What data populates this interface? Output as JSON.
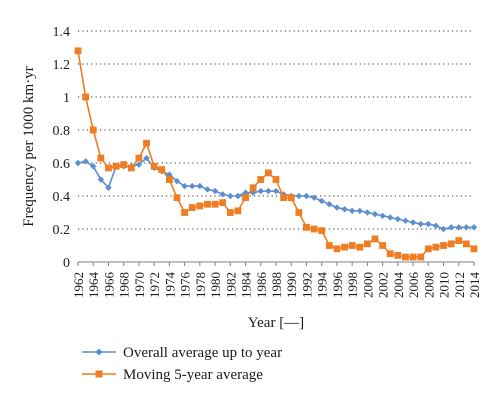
{
  "chart_data": {
    "type": "line",
    "title": "",
    "xlabel": "Year [—]",
    "ylabel": "Frequency per 1000 km·yr",
    "xlim": [
      1962,
      2014
    ],
    "ylim": [
      0,
      1.4
    ],
    "y_ticks": [
      "0",
      "0.2",
      "0.4",
      "0.6",
      "0.8",
      "1",
      "1.2",
      "1.4"
    ],
    "x_ticks": [
      "1962",
      "1964",
      "1966",
      "1968",
      "1970",
      "1972",
      "1974",
      "1976",
      "1978",
      "1980",
      "1982",
      "1984",
      "1986",
      "1988",
      "1990",
      "1992",
      "1994",
      "1996",
      "1998",
      "2000",
      "2002",
      "2004",
      "2006",
      "2008",
      "2010",
      "2012",
      "2014"
    ],
    "grid": "horizontal dotted",
    "legend_position": "bottom",
    "x": [
      1962,
      1963,
      1964,
      1965,
      1966,
      1967,
      1968,
      1969,
      1970,
      1971,
      1972,
      1973,
      1974,
      1975,
      1976,
      1977,
      1978,
      1979,
      1980,
      1981,
      1982,
      1983,
      1984,
      1985,
      1986,
      1987,
      1988,
      1989,
      1990,
      1991,
      1992,
      1993,
      1994,
      1995,
      1996,
      1997,
      1998,
      1999,
      2000,
      2001,
      2002,
      2003,
      2004,
      2005,
      2006,
      2007,
      2008,
      2009,
      2010,
      2011,
      2012,
      2013,
      2014
    ],
    "series": [
      {
        "name": "Overall average up to year",
        "color": "#5b8fd0",
        "marker": "diamond",
        "values": [
          0.6,
          0.61,
          0.58,
          0.5,
          0.45,
          0.58,
          0.58,
          0.58,
          0.59,
          0.63,
          0.57,
          0.55,
          0.53,
          0.49,
          0.46,
          0.46,
          0.46,
          0.44,
          0.43,
          0.41,
          0.4,
          0.4,
          0.42,
          0.42,
          0.43,
          0.43,
          0.43,
          0.41,
          0.4,
          0.4,
          0.4,
          0.39,
          0.37,
          0.35,
          0.33,
          0.32,
          0.31,
          0.31,
          0.3,
          0.29,
          0.28,
          0.27,
          0.26,
          0.25,
          0.24,
          0.23,
          0.23,
          0.22,
          0.2,
          0.21,
          0.21,
          0.21,
          0.21
        ]
      },
      {
        "name": "Moving 5-year average",
        "color": "#ee7d23",
        "marker": "square",
        "values": [
          1.28,
          1.0,
          0.8,
          0.63,
          0.57,
          0.58,
          0.59,
          0.57,
          0.63,
          0.72,
          0.58,
          0.56,
          0.5,
          0.39,
          0.3,
          0.33,
          0.34,
          0.35,
          0.35,
          0.36,
          0.3,
          0.31,
          0.39,
          0.45,
          0.5,
          0.54,
          0.5,
          0.39,
          0.39,
          0.3,
          0.21,
          0.2,
          0.19,
          0.1,
          0.08,
          0.09,
          0.1,
          0.09,
          0.11,
          0.14,
          0.1,
          0.05,
          0.04,
          0.03,
          0.03,
          0.03,
          0.08,
          0.09,
          0.1,
          0.11,
          0.13,
          0.11,
          0.08
        ]
      }
    ]
  }
}
